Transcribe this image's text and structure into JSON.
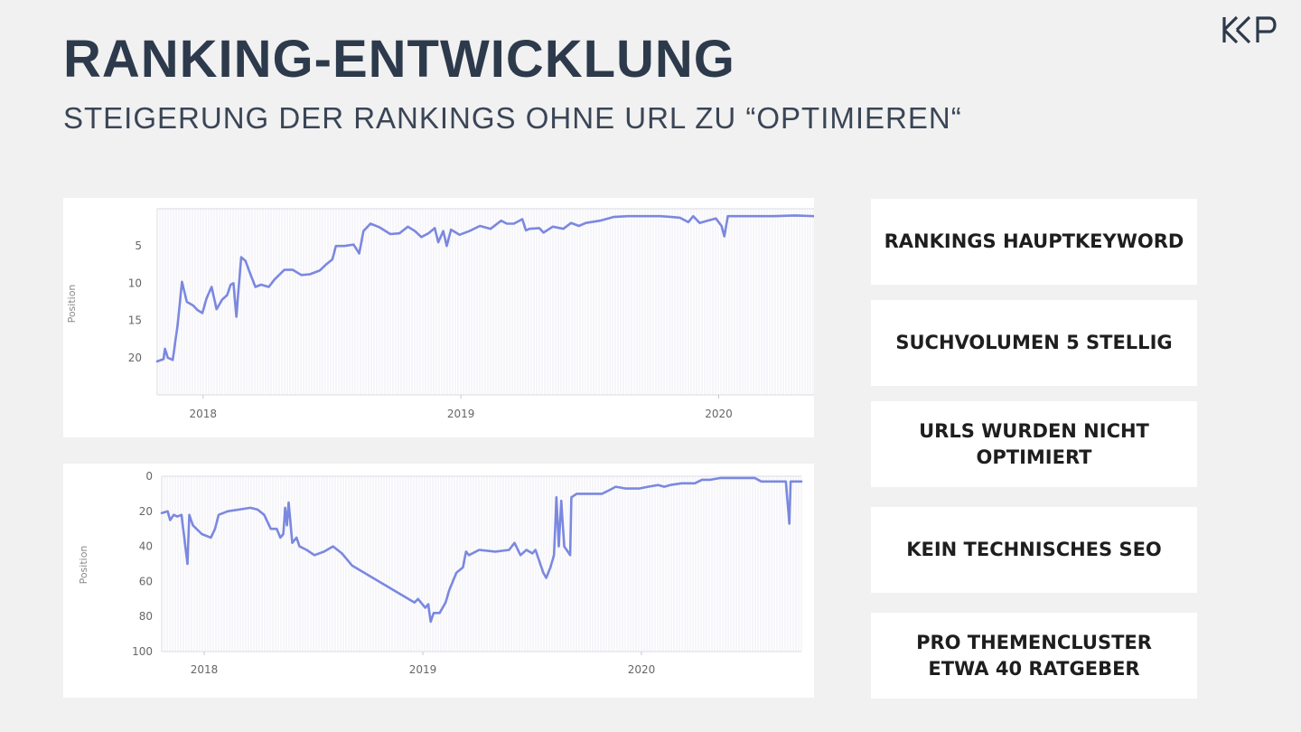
{
  "header": {
    "title": "RANKING-ENTWICKLUNG",
    "subtitle": "STEIGERUNG DER RANKINGS OHNE URL ZU “OPTIMIEREN“"
  },
  "logo": {
    "text": "KKP"
  },
  "boxes": [
    "RANKINGS HAUPTKEYWORD",
    "SUCHVOLUMEN 5 STELLIG",
    "URLS WURDEN NICHT OPTIMIERT",
    "KEIN TECHNISCHES SEO",
    "PRO THEMENCLUSTER ETWA 40 RATGEBER"
  ],
  "colors": {
    "line": "#7b88e0",
    "title": "#2d3a4c"
  },
  "chart_data": [
    {
      "type": "line",
      "ylabel": "Position",
      "y_inverted": true,
      "ylim": [
        0,
        25
      ],
      "yticks": [
        5,
        10,
        15,
        20
      ],
      "xticks": [
        "2018",
        "2019",
        "2020"
      ],
      "x_start": "2017-10-28",
      "x_end": "2020-05-15",
      "grid": "vertical",
      "series": [
        {
          "points": [
            [
              "2017-10-28",
              20.5
            ],
            [
              "2017-11-06",
              20.2
            ],
            [
              "2017-11-08",
              18.8
            ],
            [
              "2017-11-12",
              20.0
            ],
            [
              "2017-11-19",
              20.3
            ],
            [
              "2017-11-26",
              15.5
            ],
            [
              "2017-12-02",
              9.8
            ],
            [
              "2017-12-09",
              12.5
            ],
            [
              "2017-12-18",
              13.0
            ],
            [
              "2017-12-24",
              13.6
            ],
            [
              "2017-12-31",
              14.0
            ],
            [
              "2018-01-06",
              12.0
            ],
            [
              "2018-01-13",
              10.5
            ],
            [
              "2018-01-20",
              13.5
            ],
            [
              "2018-01-28",
              12.2
            ],
            [
              "2018-02-04",
              11.6
            ],
            [
              "2018-02-09",
              10.2
            ],
            [
              "2018-02-13",
              10.0
            ],
            [
              "2018-02-17",
              14.5
            ],
            [
              "2018-02-20",
              11.0
            ],
            [
              "2018-02-24",
              6.5
            ],
            [
              "2018-03-02",
              7.0
            ],
            [
              "2018-03-09",
              8.8
            ],
            [
              "2018-03-16",
              10.5
            ],
            [
              "2018-03-24",
              10.2
            ],
            [
              "2018-04-04",
              10.5
            ],
            [
              "2018-04-12",
              9.5
            ],
            [
              "2018-04-26",
              8.2
            ],
            [
              "2018-05-08",
              8.2
            ],
            [
              "2018-05-20",
              8.9
            ],
            [
              "2018-06-01",
              8.8
            ],
            [
              "2018-06-15",
              8.3
            ],
            [
              "2018-06-24",
              7.5
            ],
            [
              "2018-07-03",
              6.8
            ],
            [
              "2018-07-08",
              5.0
            ],
            [
              "2018-07-20",
              5.0
            ],
            [
              "2018-08-02",
              4.8
            ],
            [
              "2018-08-10",
              6.0
            ],
            [
              "2018-08-16",
              3.0
            ],
            [
              "2018-08-26",
              2.0
            ],
            [
              "2018-09-08",
              2.5
            ],
            [
              "2018-09-23",
              3.4
            ],
            [
              "2018-10-06",
              3.3
            ],
            [
              "2018-10-18",
              2.4
            ],
            [
              "2018-10-28",
              3.0
            ],
            [
              "2018-11-06",
              3.8
            ],
            [
              "2018-11-16",
              3.3
            ],
            [
              "2018-11-25",
              2.6
            ],
            [
              "2018-11-30",
              4.5
            ],
            [
              "2018-12-07",
              3.0
            ],
            [
              "2018-12-12",
              5.0
            ],
            [
              "2018-12-18",
              2.8
            ],
            [
              "2018-12-30",
              3.5
            ],
            [
              "2019-01-13",
              3.0
            ],
            [
              "2019-01-28",
              2.3
            ],
            [
              "2019-02-12",
              2.7
            ],
            [
              "2019-02-27",
              1.6
            ],
            [
              "2019-03-07",
              2.0
            ],
            [
              "2019-03-17",
              2.0
            ],
            [
              "2019-03-29",
              1.4
            ],
            [
              "2019-04-03",
              2.9
            ],
            [
              "2019-04-08",
              2.7
            ],
            [
              "2019-04-22",
              2.6
            ],
            [
              "2019-04-28",
              3.2
            ],
            [
              "2019-05-11",
              2.4
            ],
            [
              "2019-05-26",
              2.7
            ],
            [
              "2019-06-06",
              1.9
            ],
            [
              "2019-06-17",
              2.3
            ],
            [
              "2019-06-27",
              1.9
            ],
            [
              "2019-07-17",
              1.6
            ],
            [
              "2019-08-05",
              1.1
            ],
            [
              "2019-08-26",
              1.0
            ],
            [
              "2019-09-15",
              1.0
            ],
            [
              "2019-10-10",
              1.0
            ],
            [
              "2019-10-26",
              1.1
            ],
            [
              "2019-11-07",
              1.2
            ],
            [
              "2019-11-19",
              1.8
            ],
            [
              "2019-11-26",
              1.0
            ],
            [
              "2019-12-05",
              1.9
            ],
            [
              "2019-12-16",
              1.6
            ],
            [
              "2019-12-28",
              1.3
            ],
            [
              "2020-01-05",
              2.3
            ],
            [
              "2020-01-09",
              3.7
            ],
            [
              "2020-01-14",
              1.0
            ],
            [
              "2020-01-24",
              1.0
            ],
            [
              "2020-02-18",
              1.0
            ],
            [
              "2020-03-19",
              1.0
            ],
            [
              "2020-04-18",
              0.9
            ],
            [
              "2020-05-15",
              1.0
            ]
          ]
        }
      ]
    },
    {
      "type": "line",
      "ylabel": "Position",
      "y_inverted": true,
      "ylim": [
        0,
        100
      ],
      "yticks": [
        0,
        20,
        40,
        60,
        80,
        100
      ],
      "xticks": [
        "2018",
        "2019",
        "2020"
      ],
      "x_start": "2017-10-22",
      "x_end": "2020-09-24",
      "grid": "vertical",
      "series": [
        {
          "points": [
            [
              "2017-10-22",
              21
            ],
            [
              "2017-11-01",
              20
            ],
            [
              "2017-11-05",
              25
            ],
            [
              "2017-11-11",
              22
            ],
            [
              "2017-11-17",
              23
            ],
            [
              "2017-11-24",
              22
            ],
            [
              "2017-12-04",
              50
            ],
            [
              "2017-12-07",
              22
            ],
            [
              "2017-12-13",
              28
            ],
            [
              "2017-12-28",
              33
            ],
            [
              "2018-01-12",
              35
            ],
            [
              "2018-01-19",
              30
            ],
            [
              "2018-01-25",
              22
            ],
            [
              "2018-02-09",
              20
            ],
            [
              "2018-02-28",
              19
            ],
            [
              "2018-03-19",
              18
            ],
            [
              "2018-03-31",
              19
            ],
            [
              "2018-04-11",
              22
            ],
            [
              "2018-04-22",
              30
            ],
            [
              "2018-05-02",
              30
            ],
            [
              "2018-05-08",
              35
            ],
            [
              "2018-05-13",
              33
            ],
            [
              "2018-05-16",
              18
            ],
            [
              "2018-05-19",
              28
            ],
            [
              "2018-05-22",
              15
            ],
            [
              "2018-05-28",
              38
            ],
            [
              "2018-06-04",
              35
            ],
            [
              "2018-06-09",
              40
            ],
            [
              "2018-06-21",
              42
            ],
            [
              "2018-07-04",
              45
            ],
            [
              "2018-07-20",
              43
            ],
            [
              "2018-08-04",
              40
            ],
            [
              "2018-08-19",
              44
            ],
            [
              "2018-09-05",
              51
            ],
            [
              "2018-12-18",
              72
            ],
            [
              "2018-12-24",
              70
            ],
            [
              "2019-01-05",
              75
            ],
            [
              "2019-01-10",
              73
            ],
            [
              "2019-01-14",
              83
            ],
            [
              "2019-01-19",
              78
            ],
            [
              "2019-01-29",
              78
            ],
            [
              "2019-02-08",
              72
            ],
            [
              "2019-02-14",
              65
            ],
            [
              "2019-02-20",
              60
            ],
            [
              "2019-02-26",
              55
            ],
            [
              "2019-03-09",
              52
            ],
            [
              "2019-03-14",
              43
            ],
            [
              "2019-03-19",
              45
            ],
            [
              "2019-04-05",
              42
            ],
            [
              "2019-05-02",
              43
            ],
            [
              "2019-05-25",
              42
            ],
            [
              "2019-06-03",
              38
            ],
            [
              "2019-06-13",
              45
            ],
            [
              "2019-06-23",
              42
            ],
            [
              "2019-07-03",
              44
            ],
            [
              "2019-07-08",
              42
            ],
            [
              "2019-07-16",
              50
            ],
            [
              "2019-07-21",
              55
            ],
            [
              "2019-07-26",
              58
            ],
            [
              "2019-08-02",
              52
            ],
            [
              "2019-08-08",
              45
            ],
            [
              "2019-08-12",
              12
            ],
            [
              "2019-08-16",
              40
            ],
            [
              "2019-08-20",
              14
            ],
            [
              "2019-08-25",
              40
            ],
            [
              "2019-09-04",
              45
            ],
            [
              "2019-09-06",
              12
            ],
            [
              "2019-09-15",
              10
            ],
            [
              "2019-10-02",
              10
            ],
            [
              "2019-10-27",
              10
            ],
            [
              "2019-11-08",
              8
            ],
            [
              "2019-11-19",
              6
            ],
            [
              "2019-12-06",
              7
            ],
            [
              "2019-12-28",
              7
            ],
            [
              "2020-01-12",
              6
            ],
            [
              "2020-01-29",
              5
            ],
            [
              "2020-02-08",
              6
            ],
            [
              "2020-02-18",
              5
            ],
            [
              "2020-03-08",
              4
            ],
            [
              "2020-03-30",
              4
            ],
            [
              "2020-04-11",
              2
            ],
            [
              "2020-04-25",
              2
            ],
            [
              "2020-05-12",
              1
            ],
            [
              "2020-06-06",
              1
            ],
            [
              "2020-06-19",
              1
            ],
            [
              "2020-07-08",
              1
            ],
            [
              "2020-07-19",
              3
            ],
            [
              "2020-08-29",
              3
            ],
            [
              "2020-09-04",
              27
            ],
            [
              "2020-09-06",
              3
            ],
            [
              "2020-09-24",
              3
            ]
          ]
        }
      ]
    }
  ]
}
